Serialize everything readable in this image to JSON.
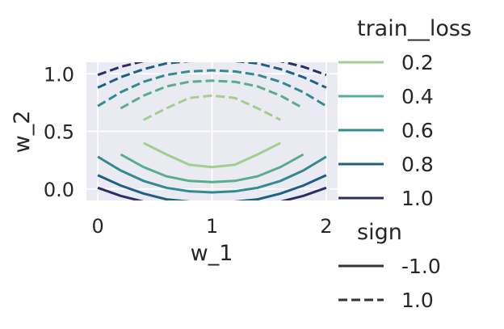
{
  "chart_data": {
    "type": "line",
    "title": "",
    "xlabel": "w_1",
    "ylabel": "w_2",
    "xlim": [
      -0.1,
      2.1
    ],
    "ylim": [
      -0.1,
      1.1
    ],
    "xticks": [
      0,
      1,
      2
    ],
    "xtick_labels": [
      "0",
      "1",
      "2"
    ],
    "yticks": [
      0.0,
      0.5,
      1.0
    ],
    "ytick_labels": [
      "0.0",
      "0.5",
      "1.0"
    ],
    "grid": true,
    "background": "#eaeaf2",
    "legend": {
      "position": "right",
      "hue_title": "train__loss",
      "hue_entries": [
        {
          "label": "0.2",
          "color": "#a1cf8c"
        },
        {
          "label": "0.4",
          "color": "#5aac8f"
        },
        {
          "label": "0.6",
          "color": "#338a90"
        },
        {
          "label": "0.8",
          "color": "#1d5f86"
        },
        {
          "label": "1.0",
          "color": "#2b2d6a"
        }
      ],
      "style_title": "sign",
      "style_entries": [
        {
          "label": "-1.0",
          "dash": "solid"
        },
        {
          "label": "1.0",
          "dash": "dashed"
        }
      ]
    },
    "series": [
      {
        "train__loss": 0.2,
        "sign": -1.0,
        "points": [
          [
            0.4,
            0.4
          ],
          [
            0.6,
            0.3
          ],
          [
            0.8,
            0.21
          ],
          [
            1.0,
            0.19
          ],
          [
            1.2,
            0.21
          ],
          [
            1.4,
            0.3
          ],
          [
            1.6,
            0.4
          ]
        ]
      },
      {
        "train__loss": 0.4,
        "sign": -1.0,
        "points": [
          [
            0.2,
            0.3
          ],
          [
            0.4,
            0.19
          ],
          [
            0.6,
            0.11
          ],
          [
            0.8,
            0.07
          ],
          [
            1.0,
            0.06
          ],
          [
            1.2,
            0.07
          ],
          [
            1.4,
            0.11
          ],
          [
            1.6,
            0.19
          ],
          [
            1.8,
            0.3
          ]
        ]
      },
      {
        "train__loss": 0.6,
        "sign": -1.0,
        "points": [
          [
            0.0,
            0.28
          ],
          [
            0.2,
            0.16
          ],
          [
            0.4,
            0.07
          ],
          [
            0.6,
            0.01
          ],
          [
            0.8,
            -0.02
          ],
          [
            1.0,
            -0.03
          ],
          [
            1.2,
            -0.02
          ],
          [
            1.4,
            0.01
          ],
          [
            1.6,
            0.07
          ],
          [
            1.8,
            0.16
          ],
          [
            2.0,
            0.28
          ]
        ]
      },
      {
        "train__loss": 0.8,
        "sign": -1.0,
        "points": [
          [
            0.0,
            0.12
          ],
          [
            0.2,
            0.03
          ],
          [
            0.4,
            -0.04
          ],
          [
            0.6,
            -0.09
          ],
          [
            0.8,
            -0.11
          ],
          [
            1.0,
            -0.12
          ],
          [
            1.2,
            -0.11
          ],
          [
            1.4,
            -0.09
          ],
          [
            1.6,
            -0.04
          ],
          [
            1.8,
            0.03
          ],
          [
            2.0,
            0.12
          ]
        ]
      },
      {
        "train__loss": 1.0,
        "sign": -1.0,
        "points": [
          [
            0.0,
            0.01
          ],
          [
            0.2,
            -0.06
          ],
          [
            0.4,
            -0.11
          ],
          [
            0.6,
            -0.15
          ],
          [
            0.8,
            -0.17
          ],
          [
            1.0,
            -0.18
          ],
          [
            1.2,
            -0.17
          ],
          [
            1.4,
            -0.15
          ],
          [
            1.6,
            -0.11
          ],
          [
            1.8,
            -0.06
          ],
          [
            2.0,
            0.01
          ]
        ]
      },
      {
        "train__loss": 0.2,
        "sign": 1.0,
        "points": [
          [
            0.4,
            0.6
          ],
          [
            0.6,
            0.7
          ],
          [
            0.8,
            0.79
          ],
          [
            1.0,
            0.81
          ],
          [
            1.2,
            0.79
          ],
          [
            1.4,
            0.7
          ],
          [
            1.6,
            0.6
          ]
        ]
      },
      {
        "train__loss": 0.4,
        "sign": 1.0,
        "points": [
          [
            0.2,
            0.7
          ],
          [
            0.4,
            0.81
          ],
          [
            0.6,
            0.89
          ],
          [
            0.8,
            0.93
          ],
          [
            1.0,
            0.94
          ],
          [
            1.2,
            0.93
          ],
          [
            1.4,
            0.89
          ],
          [
            1.6,
            0.81
          ],
          [
            1.8,
            0.7
          ]
        ]
      },
      {
        "train__loss": 0.6,
        "sign": 1.0,
        "points": [
          [
            0.0,
            0.72
          ],
          [
            0.2,
            0.84
          ],
          [
            0.4,
            0.93
          ],
          [
            0.6,
            0.99
          ],
          [
            0.8,
            1.02
          ],
          [
            1.0,
            1.03
          ],
          [
            1.2,
            1.02
          ],
          [
            1.4,
            0.99
          ],
          [
            1.6,
            0.93
          ],
          [
            1.8,
            0.84
          ],
          [
            2.0,
            0.72
          ]
        ]
      },
      {
        "train__loss": 0.8,
        "sign": 1.0,
        "points": [
          [
            0.0,
            0.88
          ],
          [
            0.2,
            0.97
          ],
          [
            0.4,
            1.04
          ],
          [
            0.6,
            1.09
          ],
          [
            0.8,
            1.11
          ],
          [
            1.0,
            1.12
          ],
          [
            1.2,
            1.11
          ],
          [
            1.4,
            1.09
          ],
          [
            1.6,
            1.04
          ],
          [
            1.8,
            0.97
          ],
          [
            2.0,
            0.88
          ]
        ]
      },
      {
        "train__loss": 1.0,
        "sign": 1.0,
        "points": [
          [
            0.0,
            0.99
          ],
          [
            0.2,
            1.06
          ],
          [
            0.4,
            1.11
          ],
          [
            0.6,
            1.15
          ],
          [
            0.8,
            1.17
          ],
          [
            1.0,
            1.18
          ],
          [
            1.2,
            1.17
          ],
          [
            1.4,
            1.15
          ],
          [
            1.6,
            1.11
          ],
          [
            1.8,
            1.06
          ],
          [
            2.0,
            0.99
          ]
        ]
      }
    ]
  }
}
